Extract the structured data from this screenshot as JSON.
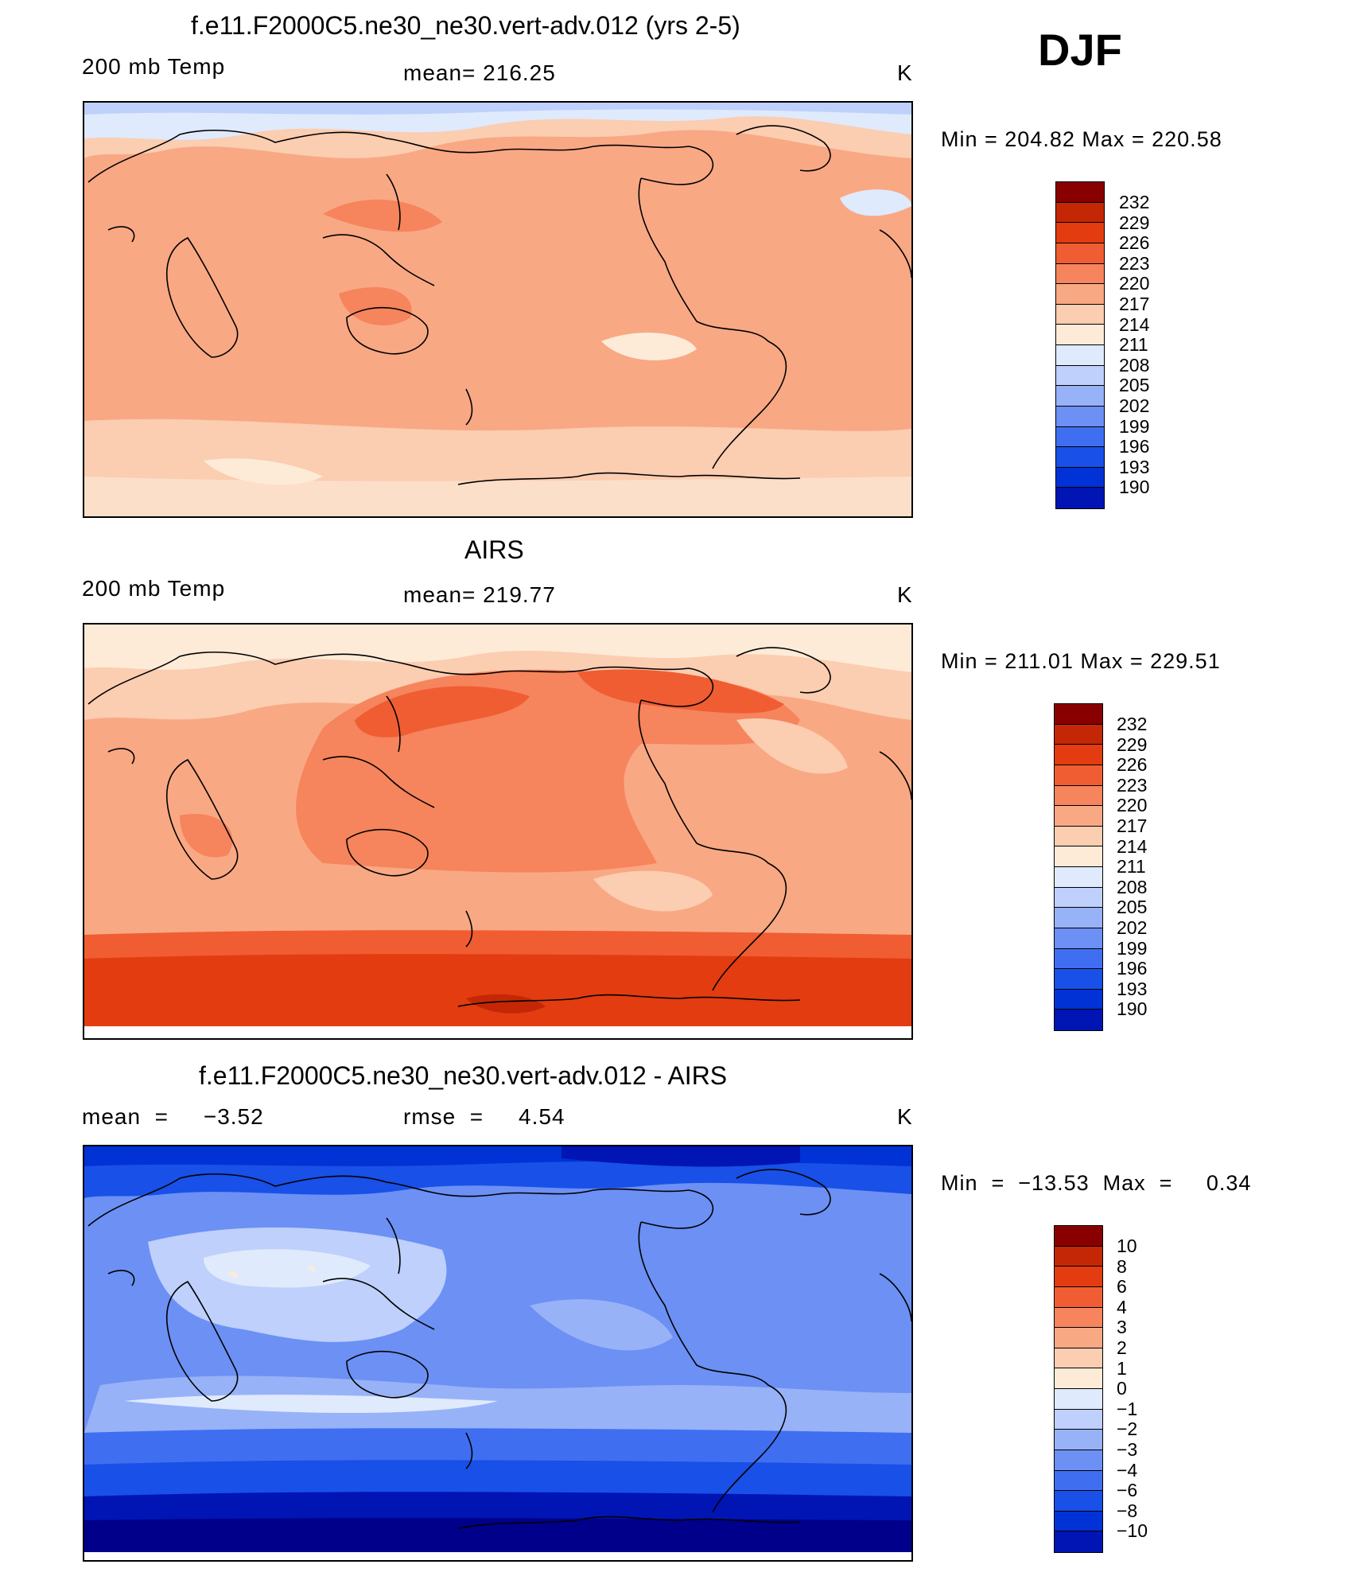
{
  "header": {
    "season": "DJF"
  },
  "colors": {
    "warm": [
      "#00008a",
      "#0015b3",
      "#0032d6",
      "#1850e8",
      "#3f6ff0",
      "#6c90f4",
      "#98b2f8",
      "#bed0fb",
      "#dfeafd",
      "#fdebd8",
      "#fbcdb1",
      "#f9a884",
      "#f6845c",
      "#f05d32",
      "#e23c10",
      "#c42705",
      "#890000"
    ],
    "diff": [
      "#00008a",
      "#0015b3",
      "#0032d6",
      "#1850e8",
      "#3f6ff0",
      "#6c90f4",
      "#98b2f8",
      "#bed0fb",
      "#dfeafd",
      "#fdebd8",
      "#fbcdb1",
      "#f9a884",
      "#f6845c",
      "#f05d32",
      "#e23c10",
      "#c42705",
      "#890000"
    ]
  },
  "panels": [
    {
      "title": "f.e11.F2000C5.ne30_ne30.vert-adv.012 (yrs 2-5)",
      "left_label": "200 mb Temp",
      "center_label": "mean=  216.25",
      "unit": "K",
      "minmax": "Min  =  204.82  Max  =  220.58",
      "colorbar_labels": [
        "232",
        "229",
        "226",
        "223",
        "220",
        "217",
        "214",
        "211",
        "208",
        "205",
        "202",
        "199",
        "196",
        "193",
        "190"
      ]
    },
    {
      "title": "AIRS",
      "left_label": "200 mb Temp",
      "center_label": "mean=  219.77",
      "unit": "K",
      "minmax": "Min  =  211.01  Max  =  229.51",
      "colorbar_labels": [
        "232",
        "229",
        "226",
        "223",
        "220",
        "217",
        "214",
        "211",
        "208",
        "205",
        "202",
        "199",
        "196",
        "193",
        "190"
      ]
    },
    {
      "title": "f.e11.F2000C5.ne30_ne30.vert-adv.012 - AIRS",
      "left_label": "mean  =     −3.52",
      "center_label": "rmse  =     4.54",
      "unit": "K",
      "minmax": "Min  =  −13.53  Max  =     0.34",
      "colorbar_labels": [
        "10",
        "8",
        "6",
        "4",
        "3",
        "2",
        "1",
        "0",
        "−1",
        "−2",
        "−3",
        "−4",
        "−6",
        "−8",
        "−10"
      ]
    }
  ]
}
